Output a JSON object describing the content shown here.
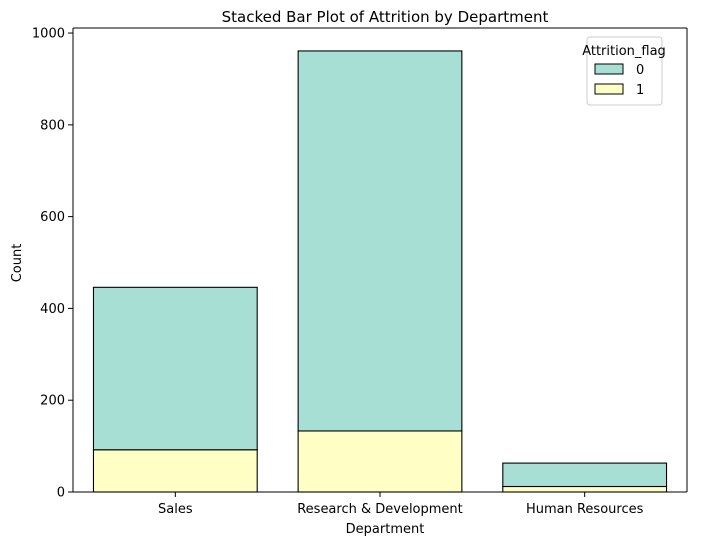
{
  "chart_data": {
    "type": "bar",
    "stacked": true,
    "title": "Stacked Bar Plot of Attrition by Department",
    "xlabel": "Department",
    "ylabel": "Count",
    "ylim": [
      0,
      1000
    ],
    "yticks": [
      0,
      200,
      400,
      600,
      800,
      1000
    ],
    "categories": [
      "Sales",
      "Research & Development",
      "Human Resources"
    ],
    "series": [
      {
        "name": "1",
        "values": [
          92,
          133,
          12
        ],
        "color": "#ffffc5"
      },
      {
        "name": "0",
        "values": [
          354,
          828,
          51
        ],
        "color": "#a8dfd5"
      }
    ],
    "legend": {
      "title": "Attrition_flag",
      "placement": "top-right",
      "order": [
        "0",
        "1"
      ]
    },
    "grid": false
  }
}
